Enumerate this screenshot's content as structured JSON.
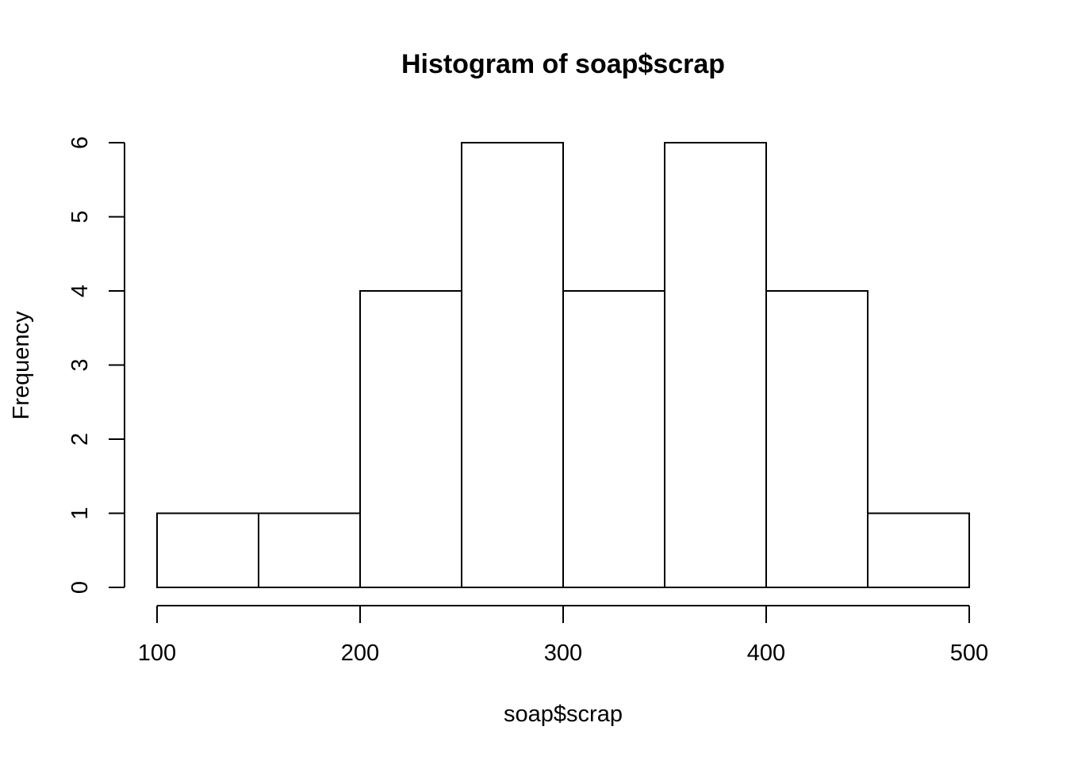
{
  "chart_data": {
    "type": "bar",
    "title": "Histogram of soap$scrap",
    "xlabel": "soap$scrap",
    "ylabel": "Frequency",
    "bins": [
      {
        "start": 100,
        "end": 150,
        "count": 1
      },
      {
        "start": 150,
        "end": 200,
        "count": 1
      },
      {
        "start": 200,
        "end": 250,
        "count": 4
      },
      {
        "start": 250,
        "end": 300,
        "count": 6
      },
      {
        "start": 300,
        "end": 350,
        "count": 4
      },
      {
        "start": 350,
        "end": 400,
        "count": 6
      },
      {
        "start": 400,
        "end": 450,
        "count": 4
      },
      {
        "start": 450,
        "end": 500,
        "count": 1
      }
    ],
    "xlim": [
      100,
      500
    ],
    "ylim": [
      0,
      6
    ],
    "x_ticks": [
      100,
      200,
      300,
      400,
      500
    ],
    "y_ticks": [
      0,
      1,
      2,
      3,
      4,
      5,
      6
    ],
    "grid": false,
    "colors": {
      "bar_fill": "#ffffff",
      "bar_stroke": "#000000"
    }
  }
}
